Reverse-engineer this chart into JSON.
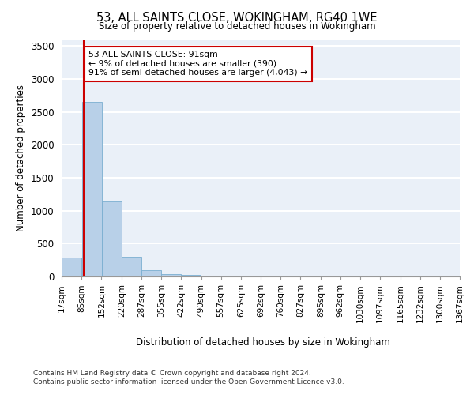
{
  "title": "53, ALL SAINTS CLOSE, WOKINGHAM, RG40 1WE",
  "subtitle": "Size of property relative to detached houses in Wokingham",
  "xlabel": "Distribution of detached houses by size in Wokingham",
  "ylabel": "Number of detached properties",
  "bar_color": "#b8d0e8",
  "bar_edge_color": "#7aaed0",
  "property_line_x": 91,
  "property_line_color": "#cc0000",
  "annotation_text": "53 ALL SAINTS CLOSE: 91sqm\n← 9% of detached houses are smaller (390)\n91% of semi-detached houses are larger (4,043) →",
  "annotation_box_color": "#ffffff",
  "annotation_box_edge_color": "#cc0000",
  "footer_line1": "Contains HM Land Registry data © Crown copyright and database right 2024.",
  "footer_line2": "Contains public sector information licensed under the Open Government Licence v3.0.",
  "bin_edges": [
    17,
    85,
    152,
    220,
    287,
    355,
    422,
    490,
    557,
    625,
    692,
    760,
    827,
    895,
    962,
    1030,
    1097,
    1165,
    1232,
    1300,
    1367
  ],
  "bin_labels": [
    "17sqm",
    "85sqm",
    "152sqm",
    "220sqm",
    "287sqm",
    "355sqm",
    "422sqm",
    "490sqm",
    "557sqm",
    "625sqm",
    "692sqm",
    "760sqm",
    "827sqm",
    "895sqm",
    "962sqm",
    "1030sqm",
    "1097sqm",
    "1165sqm",
    "1232sqm",
    "1300sqm",
    "1367sqm"
  ],
  "bar_heights": [
    290,
    2650,
    1140,
    295,
    95,
    40,
    20,
    0,
    0,
    0,
    0,
    0,
    0,
    0,
    0,
    0,
    0,
    0,
    0,
    0
  ],
  "ylim": [
    0,
    3600
  ],
  "yticks": [
    0,
    500,
    1000,
    1500,
    2000,
    2500,
    3000,
    3500
  ],
  "background_color": "#eaf0f8",
  "grid_color": "#ffffff",
  "fig_background": "#ffffff"
}
